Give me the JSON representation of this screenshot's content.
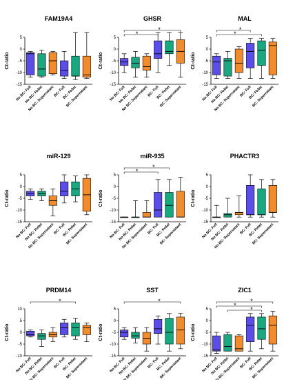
{
  "y_axis_label": "Ct-ratio",
  "categories": [
    "No BC: Full",
    "No BC: Pellet",
    "No BC: Supernatant",
    "BC: Full",
    "BC: Pellet",
    "BC: Supernatant"
  ],
  "colors": [
    "#5b4ee8",
    "#19a880",
    "#f28a2e",
    "#5b4ee8",
    "#19a880",
    "#f28a2e"
  ],
  "significance_symbol": "*",
  "chart_data": [
    {
      "type": "boxplot",
      "title": "FAM19A4",
      "ylim": [
        -15,
        5
      ],
      "yticks": [
        5,
        0,
        -5,
        -10,
        -15
      ],
      "boxes": [
        {
          "min": -12,
          "q1": -11,
          "median": -2,
          "q3": -1.5,
          "max": -1
        },
        {
          "min": -12,
          "q1": -11.5,
          "median": -8.5,
          "q3": -2,
          "max": -0.5
        },
        {
          "min": -11,
          "q1": -10.5,
          "median": -5,
          "q3": -1.5,
          "max": -1
        },
        {
          "min": -12.5,
          "q1": -11.5,
          "median": -9,
          "q3": -5,
          "max": -1
        },
        {
          "min": -13,
          "q1": -11.5,
          "median": -11.5,
          "q3": -3,
          "max": 7
        },
        {
          "min": -12.5,
          "q1": -12,
          "median": -11,
          "q3": -3,
          "max": 7
        }
      ],
      "significance": []
    },
    {
      "type": "boxplot",
      "title": "GHSR",
      "ylim": [
        -15,
        5
      ],
      "yticks": [
        5,
        0,
        -5,
        -10,
        -15
      ],
      "boxes": [
        {
          "min": -10,
          "q1": -7,
          "median": -5.5,
          "q3": -4,
          "max": -2
        },
        {
          "min": -12,
          "q1": -8,
          "median": -6,
          "q3": -3.5,
          "max": -1
        },
        {
          "min": -12,
          "q1": -9,
          "median": -7.5,
          "q3": -3,
          "max": -2
        },
        {
          "min": -10,
          "q1": -4,
          "median": -2,
          "q3": 3.5,
          "max": 7
        },
        {
          "min": -7,
          "q1": -2,
          "median": -1,
          "q3": 3.5,
          "max": 7
        },
        {
          "min": -12,
          "q1": -6,
          "median": -1,
          "q3": 4,
          "max": 7
        }
      ],
      "significance": [
        {
          "from": 0,
          "to": 5,
          "level": 0,
          "symbol": "*"
        },
        {
          "from": 0,
          "to": 3,
          "level": 1,
          "symbol": "*"
        }
      ]
    },
    {
      "type": "boxplot",
      "title": "MAL",
      "ylim": [
        -15,
        5
      ],
      "yticks": [
        5,
        0,
        -5,
        -10,
        -15
      ],
      "boxes": [
        {
          "min": -12.5,
          "q1": -11,
          "median": -5.5,
          "q3": -3,
          "max": -2
        },
        {
          "min": -12.5,
          "q1": -11.5,
          "median": -5,
          "q3": -4,
          "max": -1
        },
        {
          "min": -12.5,
          "q1": -10,
          "median": -6,
          "q3": 0,
          "max": 1
        },
        {
          "min": -12.5,
          "q1": -8,
          "median": -1,
          "q3": 2.5,
          "max": 4.5
        },
        {
          "min": -12.5,
          "q1": -7,
          "median": -0.5,
          "q3": 3.5,
          "max": 4.5
        },
        {
          "min": -12.5,
          "q1": -11,
          "median": 1.5,
          "q3": 3,
          "max": 4.5
        }
      ],
      "significance": [
        {
          "from": 0,
          "to": 3,
          "level": 0,
          "symbol": "*"
        },
        {
          "from": 0,
          "to": 4,
          "level": 1,
          "symbol": "*"
        }
      ]
    },
    {
      "type": "boxplot",
      "title": "miR-129",
      "ylim": [
        -15,
        5
      ],
      "yticks": [
        5,
        0,
        -5,
        -10,
        -15
      ],
      "boxes": [
        {
          "min": -5.5,
          "q1": -4,
          "median": -3,
          "q3": -2,
          "max": -1
        },
        {
          "min": -6,
          "q1": -4,
          "median": -3,
          "q3": -2,
          "max": -1
        },
        {
          "min": -12.5,
          "q1": -8,
          "median": -6,
          "q3": -4,
          "max": -1
        },
        {
          "min": -7,
          "q1": -4,
          "median": -2,
          "q3": 2,
          "max": 5
        },
        {
          "min": -6.5,
          "q1": -4,
          "median": -1,
          "q3": 2,
          "max": 4.5
        },
        {
          "min": -12,
          "q1": -10.5,
          "median": -3.5,
          "q3": 3.5,
          "max": 5
        }
      ],
      "significance": []
    },
    {
      "type": "boxplot",
      "title": "miR-935",
      "ylim": [
        -15,
        5
      ],
      "yticks": [
        5,
        0,
        -5,
        -10,
        -15
      ],
      "boxes": [
        {
          "min": -13,
          "q1": -13,
          "median": -13,
          "q3": -13,
          "max": -13
        },
        {
          "min": -13,
          "q1": -13,
          "median": -13,
          "q3": -13,
          "max": -6
        },
        {
          "min": -13,
          "q1": -13,
          "median": -13,
          "q3": -11,
          "max": -6
        },
        {
          "min": -13,
          "q1": -13,
          "median": -10,
          "q3": -2.5,
          "max": 3
        },
        {
          "min": -13,
          "q1": -13,
          "median": -8,
          "q3": -2.5,
          "max": 3
        },
        {
          "min": -13,
          "q1": -13,
          "median": -13,
          "q3": -2,
          "max": 4
        }
      ],
      "significance": [
        {
          "from": 0,
          "to": 4,
          "level": 0,
          "symbol": "*"
        },
        {
          "from": 0,
          "to": 3,
          "level": 1,
          "symbol": "*"
        }
      ]
    },
    {
      "type": "boxplot",
      "title": "PHACTR3",
      "ylim": [
        -15,
        5
      ],
      "yticks": [
        5,
        0,
        -5,
        -10,
        -15
      ],
      "boxes": [
        {
          "min": -13,
          "q1": -13,
          "median": -13,
          "q3": -13,
          "max": -8
        },
        {
          "min": -13,
          "q1": -13,
          "median": -12,
          "q3": -11.5,
          "max": -5
        },
        {
          "min": -13,
          "q1": -12,
          "median": -11,
          "q3": -11,
          "max": -4
        },
        {
          "min": -13,
          "q1": -12,
          "median": -12,
          "q3": 0.5,
          "max": 5
        },
        {
          "min": -13,
          "q1": -12,
          "median": -12,
          "q3": -1,
          "max": 3
        },
        {
          "min": -13,
          "q1": -11,
          "median": -11,
          "q3": 0.5,
          "max": 3
        }
      ],
      "significance": []
    },
    {
      "type": "boxplot",
      "title": "PRDM14",
      "ylim": [
        -10,
        10
      ],
      "yticks": [
        10,
        5,
        0,
        -5,
        -10
      ],
      "boxes": [
        {
          "min": -2,
          "q1": -1.5,
          "median": -1,
          "q3": 0.5,
          "max": 1
        },
        {
          "min": -6,
          "q1": -3,
          "median": -1.5,
          "q3": -0.5,
          "max": 1
        },
        {
          "min": -4,
          "q1": -2,
          "median": -1,
          "q3": 0,
          "max": 2
        },
        {
          "min": -2,
          "q1": -1,
          "median": 2,
          "q3": 4,
          "max": 5.5
        },
        {
          "min": -3,
          "q1": -1.5,
          "median": 2,
          "q3": 4,
          "max": 6
        },
        {
          "min": -4,
          "q1": -1,
          "median": 2,
          "q3": 3,
          "max": 4
        }
      ],
      "significance": [
        {
          "from": 0,
          "to": 4,
          "level": 0,
          "symbol": "*"
        }
      ]
    },
    {
      "type": "boxplot",
      "title": "SST",
      "ylim": [
        -15,
        5
      ],
      "yticks": [
        5,
        0,
        -5,
        -10,
        -15
      ],
      "boxes": [
        {
          "min": -8,
          "q1": -7,
          "median": -5,
          "q3": -4,
          "max": -3
        },
        {
          "min": -9.5,
          "q1": -7.5,
          "median": -6.5,
          "q3": -5,
          "max": -3
        },
        {
          "min": -13,
          "q1": -10,
          "median": -7.5,
          "q3": -5,
          "max": -3
        },
        {
          "min": -10,
          "q1": -5.5,
          "median": -3.5,
          "q3": 0.5,
          "max": 2
        },
        {
          "min": -13,
          "q1": -10,
          "median": -5,
          "q3": 1,
          "max": 3
        },
        {
          "min": -12,
          "q1": -10,
          "median": -4,
          "q3": 1.5,
          "max": 3
        }
      ],
      "significance": [
        {
          "from": 0,
          "to": 5,
          "level": 0,
          "symbol": "*"
        }
      ]
    },
    {
      "type": "boxplot",
      "title": "ZIC1",
      "ylim": [
        -15,
        5
      ],
      "yticks": [
        5,
        0,
        -5,
        -10,
        -15
      ],
      "boxes": [
        {
          "min": -14,
          "q1": -13,
          "median": -12.5,
          "q3": -6.5,
          "max": -5
        },
        {
          "min": -13,
          "q1": -13,
          "median": -11,
          "q3": -6,
          "max": -5
        },
        {
          "min": -13,
          "q1": -13,
          "median": -12,
          "q3": -6.5,
          "max": -6
        },
        {
          "min": -13,
          "q1": -9,
          "median": -2,
          "q3": 1.5,
          "max": 3
        },
        {
          "min": -12,
          "q1": -8,
          "median": -3.5,
          "q3": 1.5,
          "max": 3
        },
        {
          "min": -13,
          "q1": -10,
          "median": -2,
          "q3": 2,
          "max": 4
        }
      ],
      "significance": [
        {
          "from": 0,
          "to": 5,
          "level": 0,
          "symbol": "*"
        },
        {
          "from": 0,
          "to": 4,
          "level": 1,
          "symbol": "*"
        },
        {
          "from": 1,
          "to": 4,
          "level": 2,
          "symbol": "*"
        }
      ]
    }
  ]
}
